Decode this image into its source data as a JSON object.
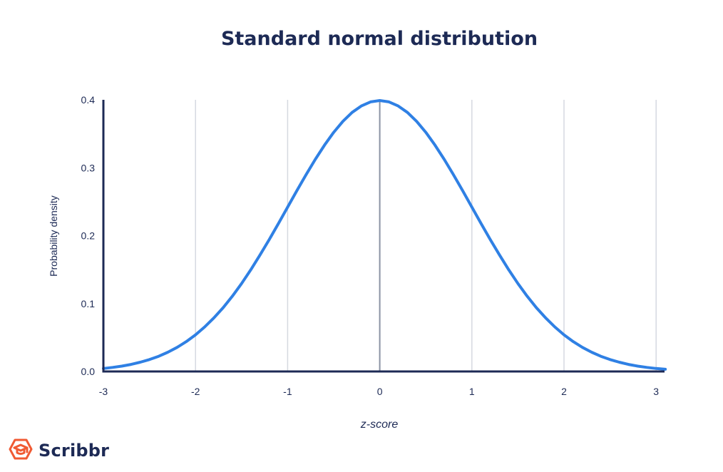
{
  "chart_data": {
    "type": "line",
    "title": "Standard normal distribution",
    "xlabel": "z-score",
    "ylabel": "Probability density",
    "xlim": [
      -3,
      3.1
    ],
    "ylim": [
      0,
      0.4
    ],
    "x_ticks": [
      "-3",
      "-2",
      "-1",
      "0",
      "1",
      "2",
      "3"
    ],
    "y_ticks": [
      "0.0",
      "0.1",
      "0.2",
      "0.3",
      "0.4"
    ],
    "grid": "vertical",
    "series": [
      {
        "x": [
          -3,
          -2.9,
          -2.8,
          -2.7,
          -2.6,
          -2.5,
          -2.4,
          -2.3,
          -2.2,
          -2.1,
          -2,
          -1.9,
          -1.8,
          -1.7,
          -1.6,
          -1.5,
          -1.4,
          -1.3,
          -1.2,
          -1.1,
          -1,
          -0.9,
          -0.8,
          -0.7,
          -0.6,
          -0.5,
          -0.4,
          -0.3,
          -0.2,
          -0.1,
          0,
          0.1,
          0.2,
          0.3,
          0.4,
          0.5,
          0.6,
          0.7,
          0.8,
          0.9,
          1,
          1.1,
          1.2,
          1.3,
          1.4,
          1.5,
          1.6,
          1.7,
          1.8,
          1.9,
          2,
          2.1,
          2.2,
          2.3,
          2.4,
          2.5,
          2.6,
          2.7,
          2.8,
          2.9,
          3,
          3.1
        ],
        "values": [
          0.0044,
          0.006,
          0.0079,
          0.0104,
          0.0136,
          0.0175,
          0.0224,
          0.0283,
          0.0355,
          0.044,
          0.054,
          0.0656,
          0.079,
          0.094,
          0.1109,
          0.1295,
          0.1497,
          0.1714,
          0.1942,
          0.2179,
          0.242,
          0.2661,
          0.2897,
          0.3123,
          0.3332,
          0.3521,
          0.3683,
          0.3814,
          0.391,
          0.397,
          0.3989,
          0.397,
          0.391,
          0.3814,
          0.3683,
          0.3521,
          0.3332,
          0.3123,
          0.2897,
          0.2661,
          0.242,
          0.2179,
          0.1942,
          0.1714,
          0.1497,
          0.1295,
          0.1109,
          0.094,
          0.079,
          0.0656,
          0.054,
          0.044,
          0.0355,
          0.0283,
          0.0224,
          0.0175,
          0.0136,
          0.0104,
          0.0079,
          0.006,
          0.0044,
          0.0033
        ]
      }
    ],
    "colors": {
      "curve": "#2f80e4",
      "axis": "#1d2a55",
      "grid": "#d5d9e0",
      "center_line": "#8a93a3",
      "text": "#1d2a55"
    }
  },
  "brand": {
    "name": "Scribbr",
    "icon": "scribbr-logo-icon",
    "color": "#f05a33"
  }
}
